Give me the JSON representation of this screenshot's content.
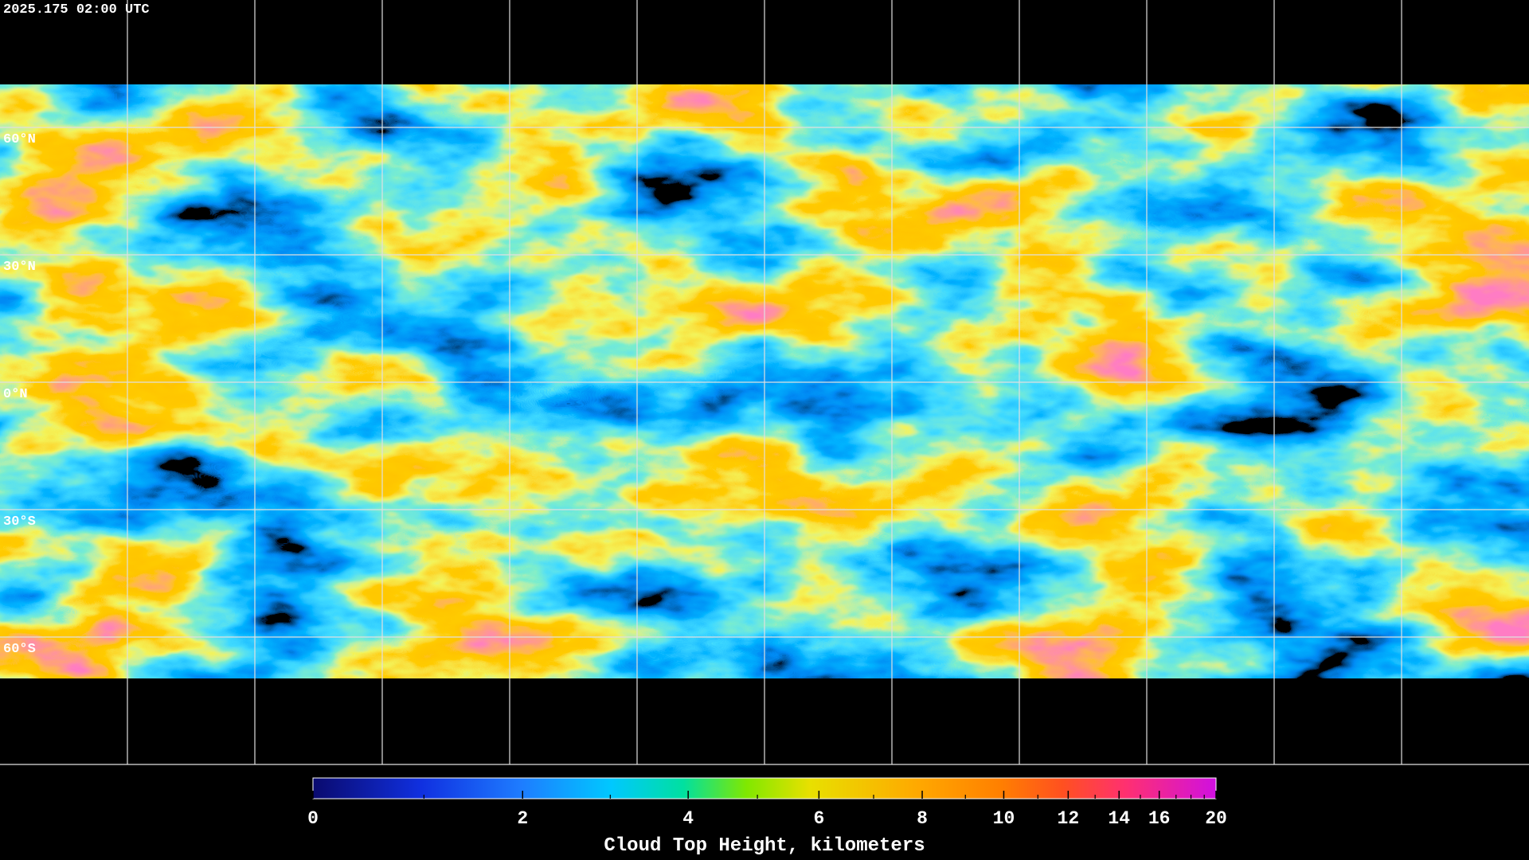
{
  "map": {
    "title": "2025.175 02:00 UTC",
    "lat_lines": [
      {
        "value": 60,
        "label": "60°N"
      },
      {
        "value": 30,
        "label": "30°N"
      },
      {
        "value": 0,
        "label": "0°N"
      },
      {
        "value": -30,
        "label": "30°S"
      },
      {
        "value": -60,
        "label": "60°S"
      }
    ],
    "lon_lines": [
      -150,
      -120,
      -90,
      -60,
      -30,
      0,
      30,
      60,
      90,
      120,
      150
    ],
    "colorbar": {
      "label": "Cloud Top Height, kilometers",
      "lim": [
        0,
        20
      ],
      "ticks": [
        0,
        2,
        4,
        6,
        8,
        10,
        12,
        14,
        16,
        20
      ],
      "minor_ticks": [
        1,
        3,
        5,
        7,
        9,
        11,
        13,
        15,
        17,
        18,
        19
      ]
    }
  }
}
